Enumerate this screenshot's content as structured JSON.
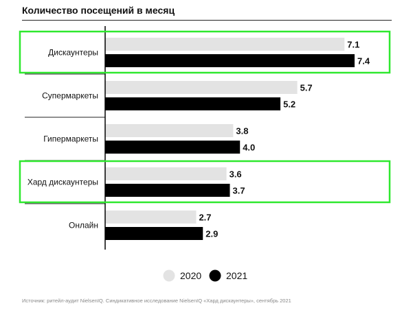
{
  "chart_data": {
    "type": "bar",
    "orientation": "horizontal",
    "title": "Количество посещений в месяц",
    "categories": [
      "Дискаунтеры",
      "Супермаркеты",
      "Гипермаркеты",
      "Хард дискаунтеры",
      "Онлайн"
    ],
    "series": [
      {
        "name": "2020",
        "values": [
          7.1,
          5.7,
          3.8,
          3.6,
          2.7
        ],
        "color": "#e3e3e3"
      },
      {
        "name": "2021",
        "values": [
          7.4,
          5.2,
          4.0,
          3.7,
          2.9
        ],
        "color": "#000000"
      }
    ],
    "highlighted_categories": [
      "Дискаунтеры",
      "Хард дискаунтеры"
    ],
    "highlight_color": "#2ee82e",
    "xlim": [
      0,
      8
    ],
    "grid": false,
    "legend_position": "bottom-center",
    "source": "Источник: ритейл-аудит NielsenIQ. Синдикативное исследование NielsenIQ «Хард дискаунтеры», сентябрь 2021"
  }
}
